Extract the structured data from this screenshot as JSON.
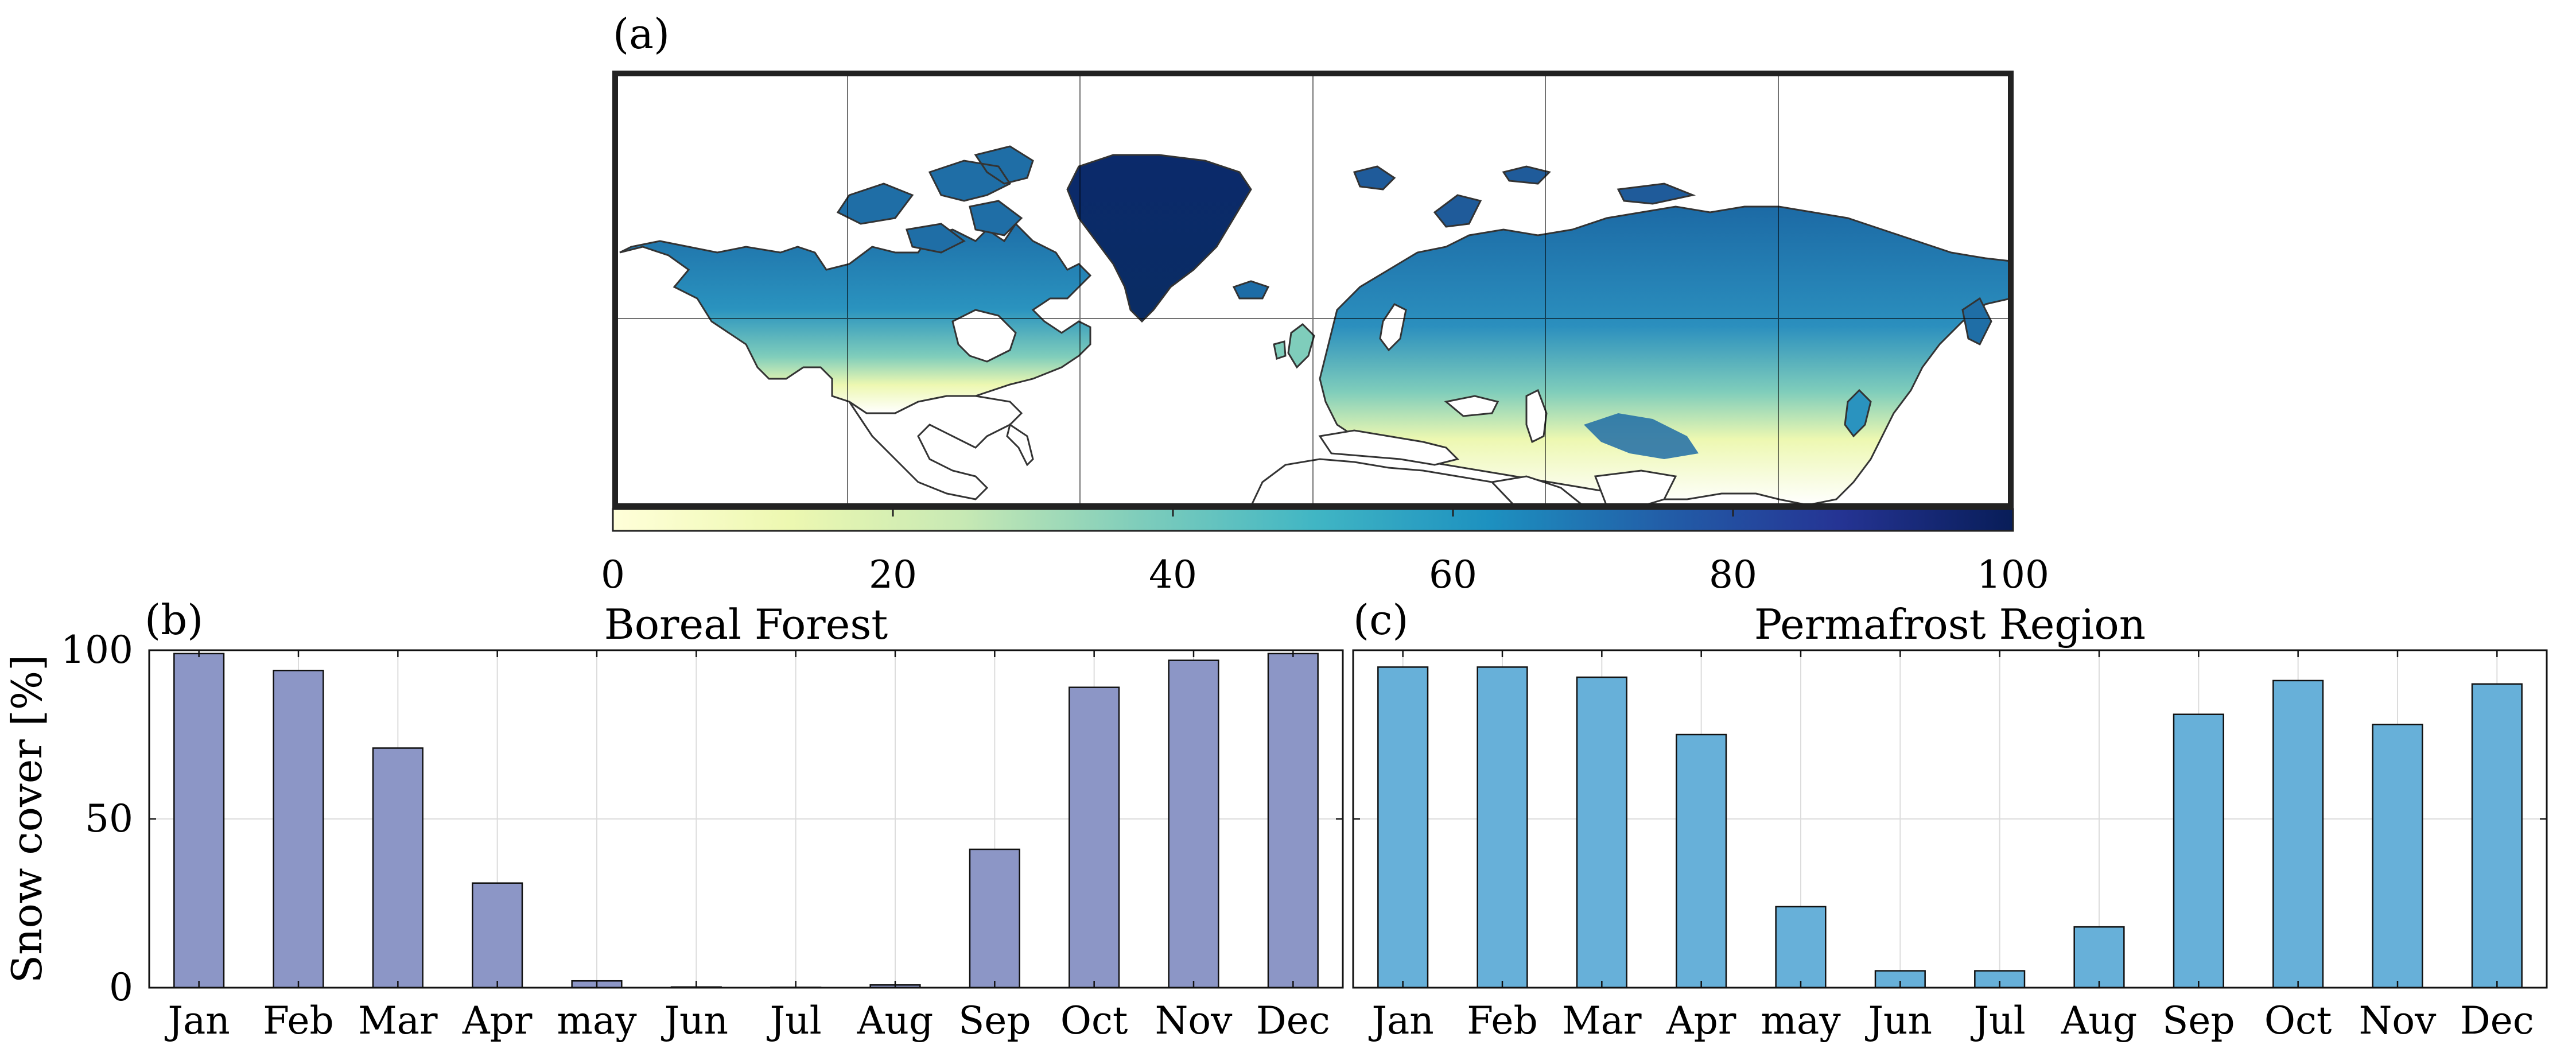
{
  "panels": {
    "a": {
      "label": "(a)"
    },
    "b": {
      "label": "(b)"
    },
    "c": {
      "label": "(c)"
    }
  },
  "map": {
    "colorbar_ticks": [
      "0",
      "20",
      "40",
      "60",
      "80",
      "100"
    ],
    "colormap": [
      "#ffffd9",
      "#edf8b1",
      "#c7e9b4",
      "#7fcdbb",
      "#41b6c4",
      "#1d91c0",
      "#225ea8",
      "#253494",
      "#081d58"
    ],
    "ocean_color": "#ffffff",
    "coastline_color": "#333333"
  },
  "chart_data": [
    {
      "type": "bar",
      "title": "Boreal Forest",
      "xlabel": "",
      "ylabel": "Snow cover [%]",
      "categories": [
        "Jan",
        "Feb",
        "Mar",
        "Apr",
        "may",
        "Jun",
        "Jul",
        "Aug",
        "Sep",
        "Oct",
        "Nov",
        "Dec"
      ],
      "values": [
        99,
        94,
        71,
        31,
        2,
        0.2,
        0.1,
        0.8,
        41,
        89,
        97,
        99
      ],
      "ylim": [
        0,
        100
      ],
      "yticks": [
        "0",
        "50",
        "100"
      ],
      "grid": true,
      "color": "#8c96c6"
    },
    {
      "type": "bar",
      "title": "Permafrost Region",
      "xlabel": "",
      "ylabel": "",
      "categories": [
        "Jan",
        "Feb",
        "Mar",
        "Apr",
        "may",
        "Jun",
        "Jul",
        "Aug",
        "Sep",
        "Oct",
        "Nov",
        "Dec"
      ],
      "values": [
        95,
        95,
        92,
        75,
        24,
        5,
        5,
        18,
        81,
        91,
        78,
        90
      ],
      "ylim": [
        0,
        100
      ],
      "yticks": [],
      "grid": true,
      "color": "#67b0d9"
    }
  ]
}
